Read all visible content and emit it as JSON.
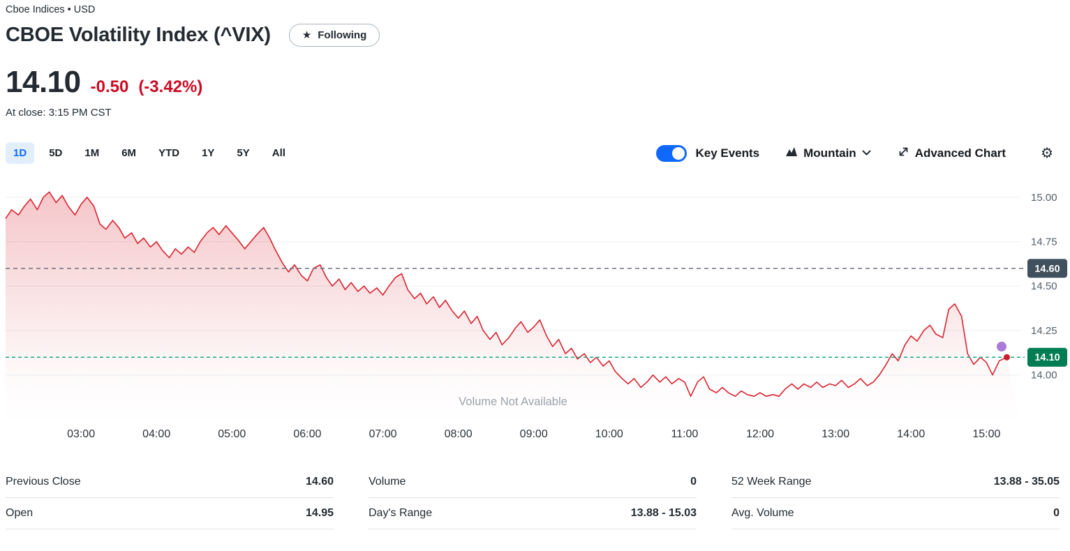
{
  "breadcrumb": {
    "text": "Cboe Indices • USD"
  },
  "header": {
    "title": "CBOE Volatility Index (^VIX)",
    "star": "★",
    "follow_label": "Following"
  },
  "quote": {
    "price": "14.10",
    "change": "-0.50",
    "change_pct": "(-3.42%)",
    "at_close": "At close: 3:15 PM CST"
  },
  "colors": {
    "accent_blue": "#0f69ff",
    "negative_red": "#cc0b23",
    "active_tab_bg": "#e3eefd"
  },
  "toolbar": {
    "ranges": [
      "1D",
      "5D",
      "1M",
      "6M",
      "YTD",
      "1Y",
      "5Y",
      "All"
    ],
    "active_range": "1D",
    "key_events_label": "Key Events",
    "chart_type_label": "Mountain",
    "advanced_chart_label": "Advanced Chart",
    "gear_icon": "⚙"
  },
  "chart_data": {
    "type": "area",
    "title": "CBOE Volatility Index intraday 1D",
    "no_volume_text": "Volume Not Available",
    "x_range": [
      2.0,
      15.45
    ],
    "y_range": [
      13.72,
      15.07
    ],
    "previous_close": 14.6,
    "previous_close_label": "14.60",
    "current": 14.1,
    "current_label": "14.10",
    "event_dot": [
      15.2,
      14.16
    ],
    "last_dot": [
      15.27,
      14.1
    ],
    "colors": {
      "line": "#d9232e",
      "teal": "#1ba784",
      "badge_dark": "#40505c",
      "badge_green": "#007d52",
      "grid": "#eceff2",
      "prev_dash": "#6b7280",
      "axis_text": "#56606b",
      "x_text": "#2b3137",
      "muted": "#9ba3ab",
      "event_dot": "#a36bd6",
      "last_dot": "#c81e2e"
    },
    "y_ticks": [
      {
        "v": 15.0,
        "label": "15.00"
      },
      {
        "v": 14.75,
        "label": "14.75"
      },
      {
        "v": 14.5,
        "label": "14.50"
      },
      {
        "v": 14.25,
        "label": "14.25"
      },
      {
        "v": 14.0,
        "label": "14.00"
      }
    ],
    "x_ticks": [
      {
        "v": 3,
        "label": "03:00"
      },
      {
        "v": 4,
        "label": "04:00"
      },
      {
        "v": 5,
        "label": "05:00"
      },
      {
        "v": 6,
        "label": "06:00"
      },
      {
        "v": 7,
        "label": "07:00"
      },
      {
        "v": 8,
        "label": "08:00"
      },
      {
        "v": 9,
        "label": "09:00"
      },
      {
        "v": 10,
        "label": "10:00"
      },
      {
        "v": 11,
        "label": "11:00"
      },
      {
        "v": 12,
        "label": "12:00"
      },
      {
        "v": 13,
        "label": "13:00"
      },
      {
        "v": 14,
        "label": "14:00"
      },
      {
        "v": 15,
        "label": "15:00"
      }
    ],
    "points": [
      [
        2.0,
        14.88
      ],
      [
        2.08,
        14.93
      ],
      [
        2.17,
        14.9
      ],
      [
        2.25,
        14.95
      ],
      [
        2.33,
        14.99
      ],
      [
        2.42,
        14.93
      ],
      [
        2.5,
        15.0
      ],
      [
        2.58,
        15.03
      ],
      [
        2.67,
        14.97
      ],
      [
        2.75,
        15.01
      ],
      [
        2.83,
        14.95
      ],
      [
        2.92,
        14.9
      ],
      [
        3.0,
        14.96
      ],
      [
        3.08,
        15.0
      ],
      [
        3.17,
        14.95
      ],
      [
        3.25,
        14.85
      ],
      [
        3.33,
        14.82
      ],
      [
        3.42,
        14.87
      ],
      [
        3.5,
        14.83
      ],
      [
        3.58,
        14.77
      ],
      [
        3.67,
        14.8
      ],
      [
        3.75,
        14.74
      ],
      [
        3.83,
        14.77
      ],
      [
        3.92,
        14.72
      ],
      [
        4.0,
        14.75
      ],
      [
        4.08,
        14.7
      ],
      [
        4.17,
        14.66
      ],
      [
        4.25,
        14.71
      ],
      [
        4.33,
        14.68
      ],
      [
        4.42,
        14.72
      ],
      [
        4.5,
        14.69
      ],
      [
        4.58,
        14.75
      ],
      [
        4.67,
        14.8
      ],
      [
        4.75,
        14.83
      ],
      [
        4.83,
        14.79
      ],
      [
        4.92,
        14.84
      ],
      [
        5.0,
        14.8
      ],
      [
        5.08,
        14.76
      ],
      [
        5.17,
        14.71
      ],
      [
        5.25,
        14.75
      ],
      [
        5.33,
        14.79
      ],
      [
        5.42,
        14.83
      ],
      [
        5.5,
        14.77
      ],
      [
        5.58,
        14.7
      ],
      [
        5.67,
        14.63
      ],
      [
        5.75,
        14.58
      ],
      [
        5.83,
        14.62
      ],
      [
        5.92,
        14.56
      ],
      [
        6.0,
        14.53
      ],
      [
        6.08,
        14.6
      ],
      [
        6.17,
        14.62
      ],
      [
        6.25,
        14.55
      ],
      [
        6.33,
        14.5
      ],
      [
        6.42,
        14.54
      ],
      [
        6.5,
        14.48
      ],
      [
        6.58,
        14.52
      ],
      [
        6.67,
        14.47
      ],
      [
        6.75,
        14.5
      ],
      [
        6.83,
        14.46
      ],
      [
        6.92,
        14.49
      ],
      [
        7.0,
        14.45
      ],
      [
        7.08,
        14.5
      ],
      [
        7.17,
        14.55
      ],
      [
        7.25,
        14.57
      ],
      [
        7.33,
        14.48
      ],
      [
        7.42,
        14.43
      ],
      [
        7.5,
        14.46
      ],
      [
        7.58,
        14.4
      ],
      [
        7.67,
        14.44
      ],
      [
        7.75,
        14.38
      ],
      [
        7.83,
        14.42
      ],
      [
        7.92,
        14.36
      ],
      [
        8.0,
        14.32
      ],
      [
        8.08,
        14.36
      ],
      [
        8.17,
        14.29
      ],
      [
        8.25,
        14.33
      ],
      [
        8.33,
        14.25
      ],
      [
        8.42,
        14.2
      ],
      [
        8.5,
        14.24
      ],
      [
        8.58,
        14.17
      ],
      [
        8.67,
        14.21
      ],
      [
        8.75,
        14.26
      ],
      [
        8.83,
        14.3
      ],
      [
        8.92,
        14.24
      ],
      [
        9.0,
        14.27
      ],
      [
        9.08,
        14.31
      ],
      [
        9.17,
        14.22
      ],
      [
        9.25,
        14.16
      ],
      [
        9.33,
        14.2
      ],
      [
        9.42,
        14.12
      ],
      [
        9.5,
        14.15
      ],
      [
        9.58,
        14.09
      ],
      [
        9.67,
        14.12
      ],
      [
        9.75,
        14.07
      ],
      [
        9.83,
        14.1
      ],
      [
        9.92,
        14.05
      ],
      [
        10.0,
        14.08
      ],
      [
        10.08,
        14.02
      ],
      [
        10.17,
        13.98
      ],
      [
        10.25,
        13.95
      ],
      [
        10.33,
        13.98
      ],
      [
        10.42,
        13.93
      ],
      [
        10.5,
        13.96
      ],
      [
        10.58,
        14.0
      ],
      [
        10.67,
        13.96
      ],
      [
        10.75,
        13.99
      ],
      [
        10.83,
        13.95
      ],
      [
        10.92,
        13.98
      ],
      [
        11.0,
        13.96
      ],
      [
        11.08,
        13.88
      ],
      [
        11.17,
        13.96
      ],
      [
        11.25,
        13.99
      ],
      [
        11.33,
        13.92
      ],
      [
        11.42,
        13.9
      ],
      [
        11.5,
        13.93
      ],
      [
        11.58,
        13.9
      ],
      [
        11.67,
        13.88
      ],
      [
        11.75,
        13.91
      ],
      [
        11.83,
        13.89
      ],
      [
        11.92,
        13.88
      ],
      [
        12.0,
        13.9
      ],
      [
        12.08,
        13.88
      ],
      [
        12.17,
        13.89
      ],
      [
        12.25,
        13.88
      ],
      [
        12.33,
        13.92
      ],
      [
        12.42,
        13.95
      ],
      [
        12.5,
        13.92
      ],
      [
        12.58,
        13.95
      ],
      [
        12.67,
        13.93
      ],
      [
        12.75,
        13.96
      ],
      [
        12.83,
        13.93
      ],
      [
        12.92,
        13.95
      ],
      [
        13.0,
        13.94
      ],
      [
        13.08,
        13.97
      ],
      [
        13.17,
        13.93
      ],
      [
        13.25,
        13.95
      ],
      [
        13.33,
        13.98
      ],
      [
        13.42,
        13.94
      ],
      [
        13.5,
        13.96
      ],
      [
        13.58,
        14.0
      ],
      [
        13.67,
        14.06
      ],
      [
        13.75,
        14.12
      ],
      [
        13.83,
        14.08
      ],
      [
        13.92,
        14.17
      ],
      [
        14.0,
        14.22
      ],
      [
        14.08,
        14.19
      ],
      [
        14.17,
        14.25
      ],
      [
        14.25,
        14.28
      ],
      [
        14.33,
        14.23
      ],
      [
        14.42,
        14.21
      ],
      [
        14.5,
        14.37
      ],
      [
        14.58,
        14.4
      ],
      [
        14.67,
        14.33
      ],
      [
        14.75,
        14.12
      ],
      [
        14.83,
        14.06
      ],
      [
        14.92,
        14.1
      ],
      [
        15.0,
        14.07
      ],
      [
        15.08,
        14.0
      ],
      [
        15.17,
        14.08
      ],
      [
        15.27,
        14.1
      ]
    ]
  },
  "stats": [
    {
      "rows": [
        {
          "label": "Previous Close",
          "value": "14.60"
        },
        {
          "label": "Open",
          "value": "14.95"
        }
      ]
    },
    {
      "rows": [
        {
          "label": "Volume",
          "value": "0"
        },
        {
          "label": "Day's Range",
          "value": "13.88 - 15.03"
        }
      ]
    },
    {
      "rows": [
        {
          "label": "52 Week Range",
          "value": "13.88 - 35.05"
        },
        {
          "label": "Avg. Volume",
          "value": "0"
        }
      ]
    }
  ]
}
